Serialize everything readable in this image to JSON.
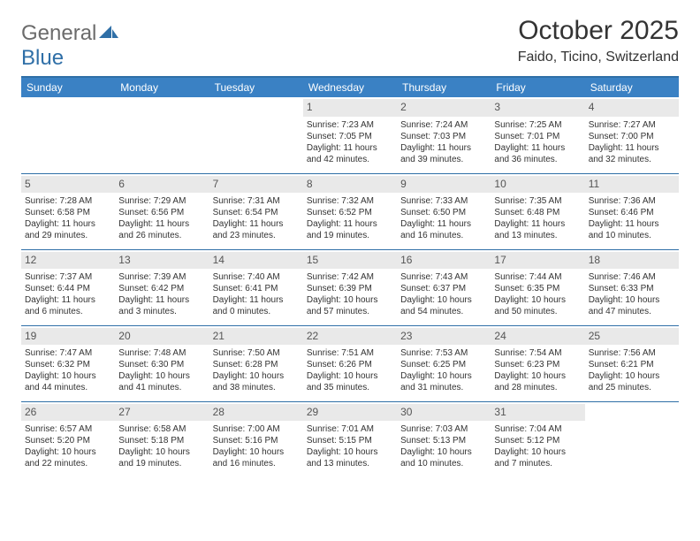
{
  "logo": {
    "general": "General",
    "blue": "Blue"
  },
  "title": {
    "month": "October 2025",
    "location": "Faido, Ticino, Switzerland"
  },
  "colors": {
    "header_bg": "#3a81c4",
    "header_border": "#2f6fa7",
    "daynum_bg": "#e9e9e9",
    "text": "#333333",
    "logo_gray": "#6b6b6b",
    "logo_blue": "#2f6fa7"
  },
  "day_headers": [
    "Sunday",
    "Monday",
    "Tuesday",
    "Wednesday",
    "Thursday",
    "Friday",
    "Saturday"
  ],
  "weeks": [
    [
      null,
      null,
      null,
      {
        "n": "1",
        "sr": "Sunrise: 7:23 AM",
        "ss": "Sunset: 7:05 PM",
        "d1": "Daylight: 11 hours",
        "d2": "and 42 minutes."
      },
      {
        "n": "2",
        "sr": "Sunrise: 7:24 AM",
        "ss": "Sunset: 7:03 PM",
        "d1": "Daylight: 11 hours",
        "d2": "and 39 minutes."
      },
      {
        "n": "3",
        "sr": "Sunrise: 7:25 AM",
        "ss": "Sunset: 7:01 PM",
        "d1": "Daylight: 11 hours",
        "d2": "and 36 minutes."
      },
      {
        "n": "4",
        "sr": "Sunrise: 7:27 AM",
        "ss": "Sunset: 7:00 PM",
        "d1": "Daylight: 11 hours",
        "d2": "and 32 minutes."
      }
    ],
    [
      {
        "n": "5",
        "sr": "Sunrise: 7:28 AM",
        "ss": "Sunset: 6:58 PM",
        "d1": "Daylight: 11 hours",
        "d2": "and 29 minutes."
      },
      {
        "n": "6",
        "sr": "Sunrise: 7:29 AM",
        "ss": "Sunset: 6:56 PM",
        "d1": "Daylight: 11 hours",
        "d2": "and 26 minutes."
      },
      {
        "n": "7",
        "sr": "Sunrise: 7:31 AM",
        "ss": "Sunset: 6:54 PM",
        "d1": "Daylight: 11 hours",
        "d2": "and 23 minutes."
      },
      {
        "n": "8",
        "sr": "Sunrise: 7:32 AM",
        "ss": "Sunset: 6:52 PM",
        "d1": "Daylight: 11 hours",
        "d2": "and 19 minutes."
      },
      {
        "n": "9",
        "sr": "Sunrise: 7:33 AM",
        "ss": "Sunset: 6:50 PM",
        "d1": "Daylight: 11 hours",
        "d2": "and 16 minutes."
      },
      {
        "n": "10",
        "sr": "Sunrise: 7:35 AM",
        "ss": "Sunset: 6:48 PM",
        "d1": "Daylight: 11 hours",
        "d2": "and 13 minutes."
      },
      {
        "n": "11",
        "sr": "Sunrise: 7:36 AM",
        "ss": "Sunset: 6:46 PM",
        "d1": "Daylight: 11 hours",
        "d2": "and 10 minutes."
      }
    ],
    [
      {
        "n": "12",
        "sr": "Sunrise: 7:37 AM",
        "ss": "Sunset: 6:44 PM",
        "d1": "Daylight: 11 hours",
        "d2": "and 6 minutes."
      },
      {
        "n": "13",
        "sr": "Sunrise: 7:39 AM",
        "ss": "Sunset: 6:42 PM",
        "d1": "Daylight: 11 hours",
        "d2": "and 3 minutes."
      },
      {
        "n": "14",
        "sr": "Sunrise: 7:40 AM",
        "ss": "Sunset: 6:41 PM",
        "d1": "Daylight: 11 hours",
        "d2": "and 0 minutes."
      },
      {
        "n": "15",
        "sr": "Sunrise: 7:42 AM",
        "ss": "Sunset: 6:39 PM",
        "d1": "Daylight: 10 hours",
        "d2": "and 57 minutes."
      },
      {
        "n": "16",
        "sr": "Sunrise: 7:43 AM",
        "ss": "Sunset: 6:37 PM",
        "d1": "Daylight: 10 hours",
        "d2": "and 54 minutes."
      },
      {
        "n": "17",
        "sr": "Sunrise: 7:44 AM",
        "ss": "Sunset: 6:35 PM",
        "d1": "Daylight: 10 hours",
        "d2": "and 50 minutes."
      },
      {
        "n": "18",
        "sr": "Sunrise: 7:46 AM",
        "ss": "Sunset: 6:33 PM",
        "d1": "Daylight: 10 hours",
        "d2": "and 47 minutes."
      }
    ],
    [
      {
        "n": "19",
        "sr": "Sunrise: 7:47 AM",
        "ss": "Sunset: 6:32 PM",
        "d1": "Daylight: 10 hours",
        "d2": "and 44 minutes."
      },
      {
        "n": "20",
        "sr": "Sunrise: 7:48 AM",
        "ss": "Sunset: 6:30 PM",
        "d1": "Daylight: 10 hours",
        "d2": "and 41 minutes."
      },
      {
        "n": "21",
        "sr": "Sunrise: 7:50 AM",
        "ss": "Sunset: 6:28 PM",
        "d1": "Daylight: 10 hours",
        "d2": "and 38 minutes."
      },
      {
        "n": "22",
        "sr": "Sunrise: 7:51 AM",
        "ss": "Sunset: 6:26 PM",
        "d1": "Daylight: 10 hours",
        "d2": "and 35 minutes."
      },
      {
        "n": "23",
        "sr": "Sunrise: 7:53 AM",
        "ss": "Sunset: 6:25 PM",
        "d1": "Daylight: 10 hours",
        "d2": "and 31 minutes."
      },
      {
        "n": "24",
        "sr": "Sunrise: 7:54 AM",
        "ss": "Sunset: 6:23 PM",
        "d1": "Daylight: 10 hours",
        "d2": "and 28 minutes."
      },
      {
        "n": "25",
        "sr": "Sunrise: 7:56 AM",
        "ss": "Sunset: 6:21 PM",
        "d1": "Daylight: 10 hours",
        "d2": "and 25 minutes."
      }
    ],
    [
      {
        "n": "26",
        "sr": "Sunrise: 6:57 AM",
        "ss": "Sunset: 5:20 PM",
        "d1": "Daylight: 10 hours",
        "d2": "and 22 minutes."
      },
      {
        "n": "27",
        "sr": "Sunrise: 6:58 AM",
        "ss": "Sunset: 5:18 PM",
        "d1": "Daylight: 10 hours",
        "d2": "and 19 minutes."
      },
      {
        "n": "28",
        "sr": "Sunrise: 7:00 AM",
        "ss": "Sunset: 5:16 PM",
        "d1": "Daylight: 10 hours",
        "d2": "and 16 minutes."
      },
      {
        "n": "29",
        "sr": "Sunrise: 7:01 AM",
        "ss": "Sunset: 5:15 PM",
        "d1": "Daylight: 10 hours",
        "d2": "and 13 minutes."
      },
      {
        "n": "30",
        "sr": "Sunrise: 7:03 AM",
        "ss": "Sunset: 5:13 PM",
        "d1": "Daylight: 10 hours",
        "d2": "and 10 minutes."
      },
      {
        "n": "31",
        "sr": "Sunrise: 7:04 AM",
        "ss": "Sunset: 5:12 PM",
        "d1": "Daylight: 10 hours",
        "d2": "and 7 minutes."
      },
      null
    ]
  ]
}
